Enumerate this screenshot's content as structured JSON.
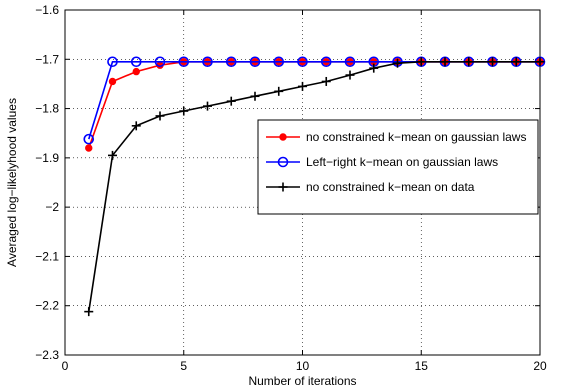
{
  "chart_data": {
    "type": "line",
    "title": "",
    "xlabel": "Number of iterations",
    "ylabel": "Averaged log−likelyhood values",
    "xlim": [
      0,
      20
    ],
    "ylim": [
      -2.3,
      -1.6
    ],
    "x_ticks": [
      0,
      5,
      10,
      15,
      20
    ],
    "x_tick_labels": [
      "0",
      "5",
      "10",
      "15",
      "20"
    ],
    "y_ticks": [
      -1.6,
      -1.7,
      -1.8,
      -1.9,
      -2.0,
      -2.1,
      -2.2,
      -2.3
    ],
    "y_tick_labels": [
      "−1.6",
      "−1.7",
      "−1.8",
      "−1.9",
      "−2",
      "−2.1",
      "−2.2",
      "−2.3"
    ],
    "grid": true,
    "legend_position": "right",
    "x": [
      1,
      2,
      3,
      4,
      5,
      6,
      7,
      8,
      9,
      10,
      11,
      12,
      13,
      14,
      15,
      16,
      17,
      18,
      19,
      20
    ],
    "series": [
      {
        "name": "no constrained k−mean on gaussian laws",
        "color": "#ff0000",
        "marker": "dot",
        "values": [
          -1.88,
          -1.745,
          -1.725,
          -1.712,
          -1.705,
          -1.705,
          -1.705,
          -1.705,
          -1.705,
          -1.705,
          -1.705,
          -1.705,
          -1.705,
          -1.705,
          -1.705,
          -1.705,
          -1.705,
          -1.705,
          -1.705,
          -1.705
        ]
      },
      {
        "name": "Left−right k−mean on gaussian laws",
        "color": "#0000ff",
        "marker": "circle",
        "values": [
          -1.862,
          -1.705,
          -1.705,
          -1.705,
          -1.705,
          -1.705,
          -1.705,
          -1.705,
          -1.705,
          -1.705,
          -1.705,
          -1.705,
          -1.705,
          -1.705,
          -1.705,
          -1.705,
          -1.705,
          -1.705,
          -1.705,
          -1.705
        ]
      },
      {
        "name": "no constrained k−mean on data",
        "color": "#000000",
        "marker": "plus",
        "values": [
          -2.212,
          -1.895,
          -1.835,
          -1.815,
          -1.805,
          -1.795,
          -1.785,
          -1.775,
          -1.765,
          -1.755,
          -1.745,
          -1.732,
          -1.718,
          -1.708,
          -1.705,
          -1.705,
          -1.705,
          -1.705,
          -1.705,
          -1.705
        ]
      }
    ]
  }
}
